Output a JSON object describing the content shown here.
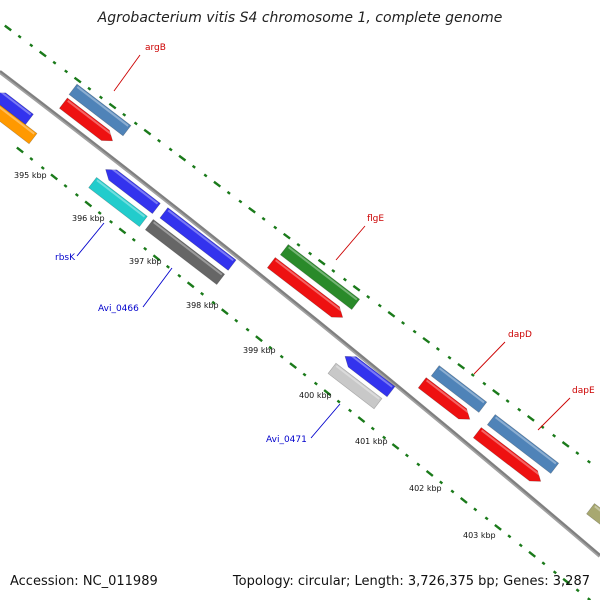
{
  "title": "Agrobacterium vitis S4 chromosome 1, complete genome",
  "footer": {
    "accession": "Accession: NC_011989",
    "summary": "Topology: circular; Length: 3,726,375 bp; Genes: 3,287"
  },
  "colors": {
    "backbone": "#7f7f7f",
    "tick_dots": "#1a7a1a",
    "label_forward": "#cc0000",
    "label_reverse": "#0000cc",
    "tick_text": "#111111"
  },
  "ticks": [
    "395 kbp",
    "396 kbp",
    "397 kbp",
    "398 kbp",
    "399 kbp",
    "400 kbp",
    "401 kbp",
    "402 kbp",
    "403 kbp"
  ],
  "gene_labels": [
    {
      "text": "argB",
      "strand": "forward"
    },
    {
      "text": "flgE",
      "strand": "forward"
    },
    {
      "text": "dapD",
      "strand": "forward"
    },
    {
      "text": "dapE",
      "strand": "forward"
    },
    {
      "text": "rbsK",
      "strand": "reverse"
    },
    {
      "text": "Avi_0466",
      "strand": "reverse"
    },
    {
      "text": "Avi_0471",
      "strand": "reverse"
    }
  ],
  "features": [
    {
      "color": "#3333ee",
      "type": "arrow-left"
    },
    {
      "color": "#ff9900",
      "type": "bar"
    },
    {
      "color": "#4f83b8",
      "type": "bar"
    },
    {
      "color": "#ee1111",
      "type": "arrow-right"
    },
    {
      "color": "#3333ee",
      "type": "arrow-left"
    },
    {
      "color": "#22cccc",
      "type": "bar"
    },
    {
      "color": "#3333ee",
      "type": "bar"
    },
    {
      "color": "#666666",
      "type": "bar"
    },
    {
      "color": "#2a8a2a",
      "type": "bar"
    },
    {
      "color": "#ee1111",
      "type": "arrow-right"
    },
    {
      "color": "#3333ee",
      "type": "arrow-left"
    },
    {
      "color": "#c8c8c8",
      "type": "bar"
    },
    {
      "color": "#4f83b8",
      "type": "bar"
    },
    {
      "color": "#ee1111",
      "type": "arrow-right"
    },
    {
      "color": "#4f83b8",
      "type": "bar"
    },
    {
      "color": "#ee1111",
      "type": "arrow-right"
    },
    {
      "color": "#a8a870",
      "type": "bar"
    }
  ]
}
